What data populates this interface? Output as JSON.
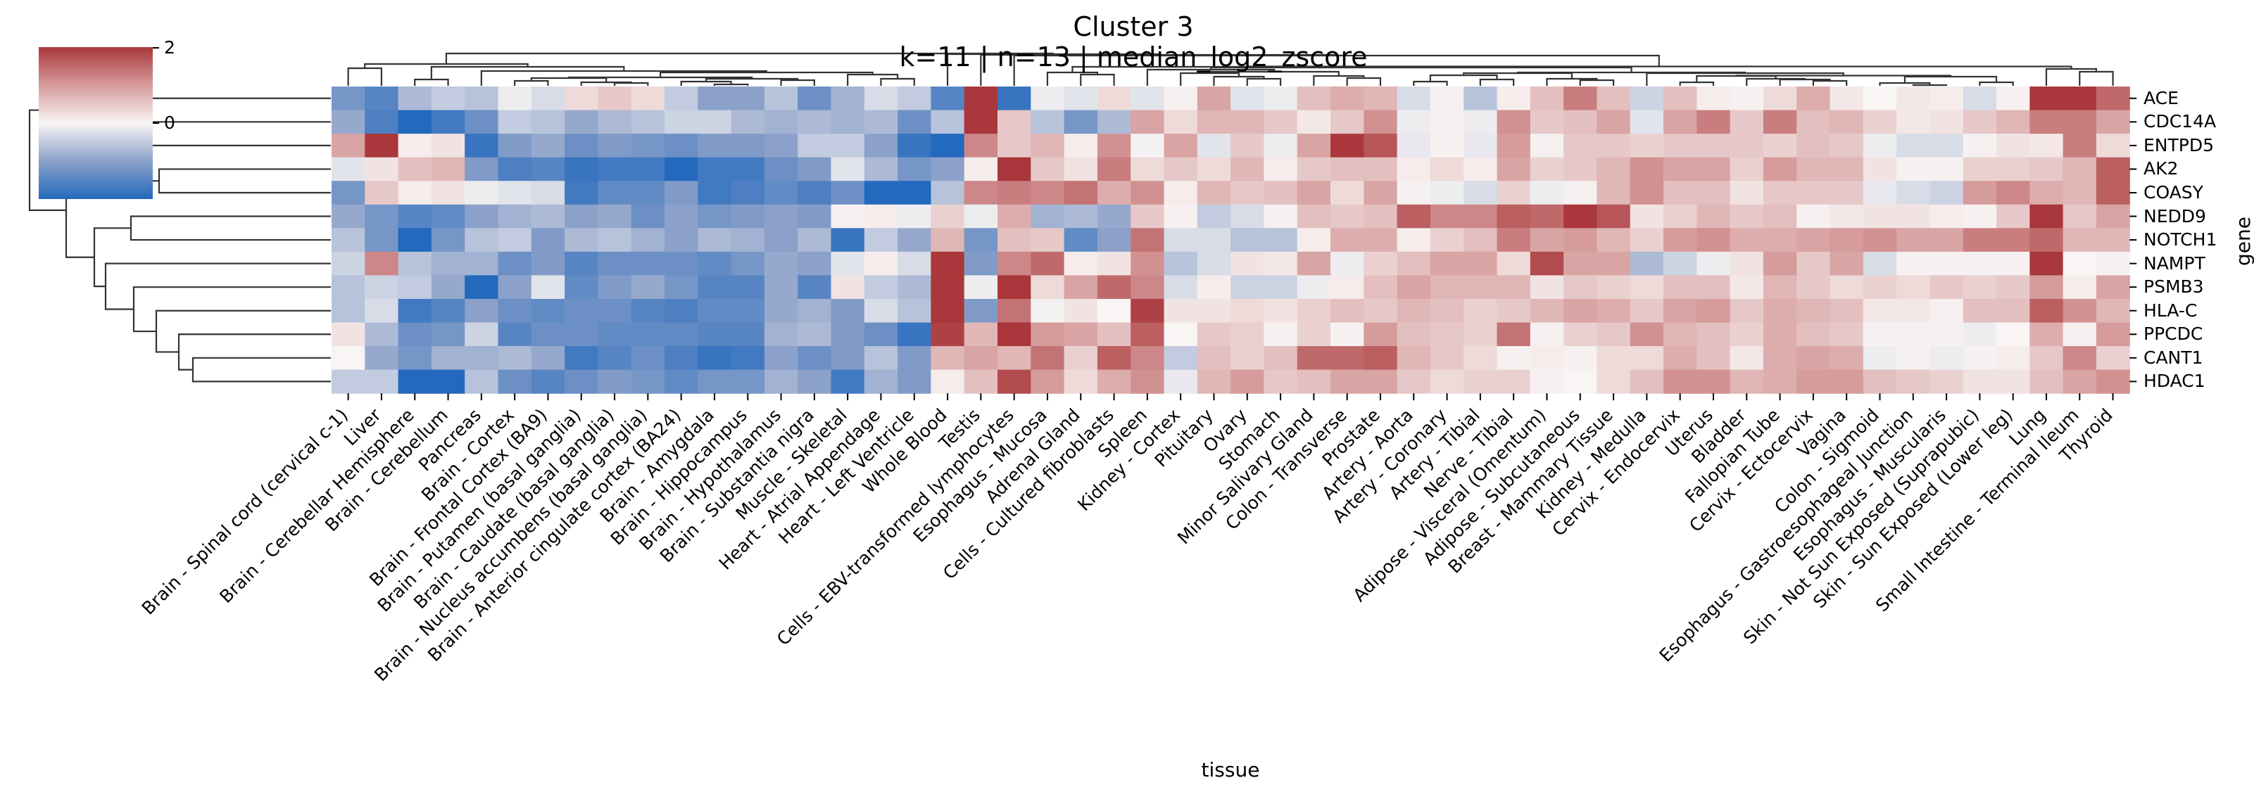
{
  "chart_data": {
    "type": "heatmap",
    "title": "Cluster 3",
    "subtitle": "k=11 | n=13 | median_log2_zscore",
    "xlabel": "tissue",
    "ylabel": "gene",
    "x_labels": [
      "Brain - Spinal cord (cervical c-1)",
      "Liver",
      "Brain - Cerebellar Hemisphere",
      "Brain - Cerebellum",
      "Pancreas",
      "Brain - Cortex",
      "Brain - Frontal Cortex (BA9)",
      "Brain - Putamen (basal ganglia)",
      "Brain - Caudate (basal ganglia)",
      "Brain - Nucleus accumbens (basal ganglia)",
      "Brain - Anterior cingulate cortex (BA24)",
      "Brain - Amygdala",
      "Brain - Hippocampus",
      "Brain - Hypothalamus",
      "Brain - Substantia nigra",
      "Muscle - Skeletal",
      "Heart - Atrial Appendage",
      "Heart - Left Ventricle",
      "Whole Blood",
      "Testis",
      "Cells - EBV-transformed lymphocytes",
      "Esophagus - Mucosa",
      "Adrenal Gland",
      "Cells - Cultured fibroblasts",
      "Spleen",
      "Kidney - Cortex",
      "Pituitary",
      "Ovary",
      "Stomach",
      "Minor Salivary Gland",
      "Colon - Transverse",
      "Prostate",
      "Artery - Aorta",
      "Artery - Coronary",
      "Artery - Tibial",
      "Nerve - Tibial",
      "Adipose - Visceral (Omentum)",
      "Adipose - Subcutaneous",
      "Breast - Mammary Tissue",
      "Kidney - Medulla",
      "Cervix - Endocervix",
      "Uterus",
      "Bladder",
      "Fallopian Tube",
      "Cervix - Ectocervix",
      "Vagina",
      "Colon - Sigmoid",
      "Esophagus - Gastroesophageal Junction",
      "Esophagus - Muscularis",
      "Skin - Not Sun Exposed (Suprapubic)",
      "Skin - Sun Exposed (Lower leg)",
      "Lung",
      "Small Intestine - Terminal Ileum",
      "Thyroid"
    ],
    "y_labels": [
      "ACE",
      "CDC14A",
      "ENTPD5",
      "AK2",
      "COASY",
      "NEDD9",
      "NOTCH1",
      "NAMPT",
      "PSMB3",
      "HLA-C",
      "PPCDC",
      "CANT1",
      "HDAC1"
    ],
    "value_layout": "values_by_tissue[tissue_index][gene_index]",
    "values_by_tissue": [
      [
        -1.2,
        -0.9,
        0.9,
        -0.2,
        -1.2,
        -0.9,
        -0.6,
        -0.4,
        -0.6,
        -0.6,
        0.2,
        0.0,
        -0.5
      ],
      [
        -1.5,
        -1.6,
        2.0,
        0.2,
        0.5,
        -1.2,
        -1.2,
        1.2,
        -0.4,
        -0.3,
        -0.7,
        -0.9,
        -0.5
      ],
      [
        -0.7,
        -2.0,
        0.1,
        0.6,
        0.1,
        -1.5,
        -2.1,
        -0.6,
        -0.5,
        -1.7,
        -1.3,
        -1.2,
        -2.1
      ],
      [
        -0.5,
        -1.7,
        0.2,
        0.7,
        0.2,
        -1.4,
        -1.2,
        -0.8,
        -0.9,
        -1.5,
        -1.2,
        -0.8,
        -2.1
      ],
      [
        -0.6,
        -1.3,
        -1.8,
        -1.1,
        -0.1,
        -1.0,
        -0.6,
        -0.8,
        -2.1,
        -1.0,
        -0.4,
        -0.8,
        -0.6
      ],
      [
        -0.1,
        -0.5,
        -1.1,
        -1.6,
        -0.2,
        -0.8,
        -0.5,
        -1.3,
        -1.0,
        -1.3,
        -1.5,
        -0.7,
        -1.3
      ],
      [
        -0.3,
        -0.6,
        -0.9,
        -1.5,
        -0.3,
        -0.7,
        -1.1,
        -1.1,
        -0.2,
        -1.4,
        -1.3,
        -0.9,
        -1.5
      ],
      [
        0.3,
        -0.9,
        -1.3,
        -1.8,
        -1.7,
        -1.0,
        -0.7,
        -1.5,
        -1.4,
        -1.3,
        -1.3,
        -1.7,
        -1.3
      ],
      [
        0.5,
        -0.7,
        -1.1,
        -1.7,
        -1.4,
        -0.9,
        -0.6,
        -1.3,
        -1.1,
        -1.3,
        -1.4,
        -1.5,
        -1.1
      ],
      [
        0.3,
        -0.6,
        -1.2,
        -1.7,
        -1.4,
        -1.3,
        -0.8,
        -1.3,
        -0.9,
        -1.5,
        -1.4,
        -1.3,
        -1.2
      ],
      [
        -0.5,
        -0.4,
        -1.3,
        -2.0,
        -1.1,
        -1.0,
        -1.0,
        -1.3,
        -1.2,
        -1.6,
        -1.4,
        -1.6,
        -1.4
      ],
      [
        -1.0,
        -0.4,
        -1.1,
        -1.7,
        -1.7,
        -1.2,
        -0.7,
        -1.4,
        -1.5,
        -1.4,
        -1.5,
        -1.8,
        -1.2
      ],
      [
        -1.0,
        -0.7,
        -1.1,
        -1.7,
        -1.6,
        -1.1,
        -0.8,
        -1.2,
        -1.5,
        -1.4,
        -1.5,
        -1.7,
        -1.2
      ],
      [
        -0.6,
        -0.8,
        -1.0,
        -1.3,
        -1.4,
        -1.0,
        -1.0,
        -0.9,
        -0.9,
        -0.9,
        -0.8,
        -1.0,
        -0.8
      ],
      [
        -1.3,
        -0.7,
        -0.5,
        -1.1,
        -1.6,
        -1.1,
        -0.7,
        -1.0,
        -1.5,
        -0.8,
        -0.7,
        -1.3,
        -1.0
      ],
      [
        -0.8,
        -0.8,
        -0.5,
        -0.2,
        -1.3,
        0.05,
        -1.8,
        -0.2,
        0.2,
        -1.1,
        -1.1,
        -1.1,
        -1.7
      ],
      [
        -0.3,
        -0.7,
        -1.0,
        -0.7,
        -2.1,
        0.1,
        -0.5,
        0.1,
        -0.5,
        -0.3,
        -1.3,
        -0.6,
        -0.8
      ],
      [
        -0.5,
        -1.3,
        -1.8,
        -1.2,
        -2.1,
        -0.1,
        -0.9,
        -0.3,
        -0.7,
        -0.6,
        -1.8,
        -1.1,
        -1.1
      ],
      [
        -1.5,
        -0.6,
        -2.1,
        -1.0,
        -0.6,
        0.4,
        0.7,
        2.0,
        2.0,
        2.0,
        1.9,
        0.7,
        0.1
      ],
      [
        2.0,
        2.0,
        1.2,
        0.1,
        1.2,
        -0.1,
        -1.2,
        -1.1,
        -0.1,
        -1.1,
        0.7,
        0.9,
        0.6
      ],
      [
        -1.8,
        0.5,
        0.5,
        2.0,
        1.3,
        0.8,
        0.6,
        1.2,
        2.0,
        1.4,
        2.0,
        0.7,
        1.8
      ],
      [
        -0.1,
        -0.6,
        0.7,
        0.5,
        1.2,
        -0.8,
        0.5,
        1.5,
        0.3,
        -0.05,
        1.0,
        1.4,
        1.0
      ],
      [
        -0.2,
        -1.2,
        0.1,
        0.2,
        1.4,
        -0.7,
        -1.4,
        0.1,
        0.9,
        0.2,
        0.9,
        0.4,
        0.3
      ],
      [
        0.3,
        -0.7,
        1.1,
        1.3,
        0.8,
        -0.9,
        -1.0,
        0.2,
        1.5,
        0.0,
        0.6,
        1.6,
        0.8
      ],
      [
        -0.2,
        0.9,
        -0.05,
        0.3,
        1.1,
        0.5,
        1.4,
        1.1,
        1.2,
        1.9,
        1.6,
        1.2,
        1.1
      ],
      [
        0.05,
        0.3,
        0.9,
        0.5,
        0.1,
        0.05,
        -0.3,
        -0.6,
        -0.3,
        0.2,
        0.0,
        -0.5,
        -0.15
      ],
      [
        0.9,
        0.7,
        -0.2,
        0.3,
        0.7,
        -0.5,
        -0.3,
        -0.3,
        0.1,
        0.2,
        0.5,
        0.6,
        0.7
      ],
      [
        -0.2,
        0.7,
        0.5,
        0.7,
        0.5,
        -0.3,
        -0.6,
        0.2,
        -0.4,
        0.3,
        0.4,
        0.4,
        1.0
      ],
      [
        -0.1,
        0.5,
        -0.1,
        0.1,
        0.6,
        0.05,
        -0.6,
        0.15,
        -0.4,
        0.2,
        0.05,
        0.6,
        0.5
      ],
      [
        0.6,
        0.15,
        0.9,
        0.5,
        0.9,
        0.6,
        0.1,
        0.9,
        -0.1,
        0.4,
        0.4,
        1.5,
        0.6
      ],
      [
        0.8,
        0.5,
        2.0,
        0.6,
        0.3,
        0.5,
        0.8,
        -0.1,
        0.1,
        0.6,
        0.05,
        1.5,
        0.9
      ],
      [
        0.7,
        1.1,
        1.7,
        0.6,
        0.9,
        0.6,
        0.8,
        0.4,
        0.6,
        0.5,
        1.0,
        1.6,
        0.9
      ],
      [
        -0.3,
        -0.1,
        -0.15,
        0.1,
        0.05,
        1.6,
        0.1,
        0.6,
        0.9,
        0.7,
        0.6,
        0.7,
        0.5
      ],
      [
        0.05,
        0.05,
        0.05,
        0.3,
        -0.1,
        1.2,
        0.4,
        0.9,
        0.7,
        0.6,
        0.5,
        0.5,
        0.3
      ],
      [
        -0.6,
        -0.1,
        -0.15,
        0.1,
        -0.3,
        1.2,
        0.6,
        0.9,
        0.7,
        0.4,
        0.4,
        0.3,
        0.4
      ],
      [
        0.1,
        1.1,
        1.0,
        0.9,
        0.4,
        1.6,
        1.3,
        0.3,
        0.7,
        0.5,
        1.4,
        0.05,
        0.4
      ],
      [
        0.6,
        0.5,
        0.05,
        0.4,
        -0.1,
        1.5,
        0.9,
        1.8,
        0.2,
        0.7,
        0.05,
        0.1,
        0.05
      ],
      [
        1.3,
        0.6,
        0.5,
        0.5,
        0.05,
        2.0,
        1.0,
        0.9,
        0.5,
        0.9,
        0.4,
        0.05,
        0.0
      ],
      [
        0.6,
        0.9,
        0.5,
        0.7,
        0.7,
        1.7,
        0.7,
        0.9,
        0.4,
        0.8,
        0.5,
        0.3,
        0.3
      ],
      [
        -0.4,
        -0.2,
        0.4,
        1.1,
        1.1,
        0.2,
        0.4,
        -0.7,
        0.3,
        0.5,
        1.1,
        0.3,
        0.6
      ],
      [
        0.6,
        0.9,
        0.5,
        0.9,
        0.6,
        0.4,
        1.0,
        -0.4,
        0.6,
        0.9,
        0.7,
        0.8,
        1.1
      ],
      [
        0.1,
        1.3,
        0.5,
        0.9,
        0.6,
        0.7,
        1.1,
        -0.1,
        0.6,
        1.0,
        0.6,
        0.6,
        1.1
      ],
      [
        0.05,
        0.5,
        0.5,
        0.4,
        0.2,
        0.5,
        0.8,
        0.2,
        0.15,
        0.5,
        0.4,
        0.15,
        0.7
      ],
      [
        0.3,
        1.3,
        0.4,
        1.0,
        0.5,
        0.6,
        0.8,
        1.0,
        0.7,
        0.8,
        0.8,
        0.8,
        0.8
      ],
      [
        0.8,
        0.6,
        0.6,
        0.7,
        0.5,
        0.05,
        0.9,
        0.5,
        0.5,
        0.7,
        0.6,
        0.9,
        1.0
      ],
      [
        0.15,
        0.7,
        0.5,
        0.7,
        0.5,
        0.15,
        1.0,
        0.9,
        0.3,
        0.6,
        0.5,
        0.8,
        1.0
      ],
      [
        0.0,
        0.4,
        -0.1,
        0.2,
        -0.15,
        0.2,
        1.1,
        -0.3,
        0.4,
        0.15,
        0.05,
        -0.1,
        0.6
      ],
      [
        0.15,
        0.15,
        -0.3,
        0.05,
        -0.3,
        0.2,
        0.9,
        0.05,
        0.3,
        0.15,
        0.05,
        0.05,
        0.5
      ],
      [
        0.1,
        0.2,
        -0.3,
        0.05,
        -0.4,
        0.1,
        0.9,
        0.05,
        0.5,
        0.05,
        0.05,
        -0.1,
        0.4
      ],
      [
        -0.3,
        0.5,
        0.05,
        0.4,
        1.0,
        0.05,
        1.3,
        0.05,
        0.4,
        0.6,
        -0.1,
        0.05,
        0.2
      ],
      [
        0.05,
        0.7,
        0.2,
        0.4,
        1.2,
        0.5,
        1.3,
        0.05,
        0.5,
        0.6,
        0.0,
        0.1,
        0.2
      ],
      [
        2.0,
        1.3,
        0.15,
        0.5,
        0.8,
        2.0,
        1.5,
        2.0,
        1.0,
        1.6,
        0.8,
        0.5,
        0.6
      ],
      [
        2.0,
        1.3,
        1.3,
        0.7,
        0.7,
        0.5,
        0.7,
        0.0,
        0.1,
        1.1,
        0.05,
        1.2,
        0.9
      ],
      [
        1.5,
        0.9,
        0.3,
        1.6,
        1.6,
        0.9,
        0.7,
        0.05,
        0.9,
        0.7,
        1.0,
        0.4,
        1.1
      ]
    ],
    "color_range": [
      -2,
      2
    ],
    "colormap_stops": [
      {
        "value": -2,
        "color": "#2369bd"
      },
      {
        "value": -1,
        "color": "#8ba1c9"
      },
      {
        "value": 0,
        "color": "#f8f5f4"
      },
      {
        "value": 1,
        "color": "#d69b9b"
      },
      {
        "value": 2,
        "color": "#a9373b"
      }
    ],
    "colorbar_ticks": [
      {
        "value": 2,
        "label": "2"
      },
      {
        "value": 0,
        "label": "0"
      }
    ],
    "row_dendrogram": [
      [
        0,
        1,
        7.75
      ],
      [
        [
          2,
          [
            3,
            4,
            6.1
          ],
          6.8
        ],
        [
          [
            5,
            6,
            7.1
          ],
          [
            7,
            [
              8,
              [
                9,
                [
                  10,
                  [
                    11,
                    12,
                    4.9
                  ],
                  5.4
                ],
                6.2
              ],
              7.0
            ],
            8.0
          ],
          8.4
        ],
        9.4
      ],
      10.7
    ],
    "col_dendrogram": [
      [
        [
          0,
          1,
          2.5
        ],
        [
          [
            2,
            3,
            0.9
          ],
          [
            4,
            [
              [
                [
                  [
                    5,
                    6,
                    0.7
                  ],
                  [
                    7,
                    [
                      8,
                      9,
                      0.4
                    ],
                    0.5
                  ],
                  1.1
                ],
                [
                  [
                    10,
                    [
                      11,
                      12,
                      0.2
                    ],
                    0.6
                  ],
                  [
                    13,
                    14,
                    0.8
                  ],
                  1.0
                ],
                1.2
              ],
              [
                15,
                [
                  16,
                  17,
                  1.0
                ],
                1.6
              ],
              1.9
            ],
            2.1
          ],
          2.7
        ],
        3.1
      ],
      [
        18,
        [
          19,
          [
            20,
            [
              [
                [
                  21,
                  [
                    22,
                    23,
                    1.6
                  ],
                  1.9
                ],
                [
                  [
                    24,
                    [
                      [
                        25,
                        [
                          26,
                          [
                            27,
                            28,
                            1.0
                          ],
                          1.3
                        ],
                        1.8
                      ],
                      [
                        29,
                        [
                          30,
                          31,
                          1.1
                        ],
                        1.4
                      ],
                      2.0
                    ],
                    2.3
                  ],
                  [
                    [
                      [
                        [
                          32,
                          33,
                          0.6
                        ],
                        [
                          34,
                          35,
                          0.9
                        ],
                        1.5
                      ],
                      [
                        36,
                        [
                          37,
                          38,
                          0.8
                        ],
                        1.0
                      ],
                      1.8
                    ],
                    [
                      39,
                      [
                        [
                          [
                            40,
                            41,
                            0.5
                          ],
                          [
                            42,
                            [
                              43,
                              [
                                44,
                                45,
                                0.7
                              ],
                              0.9
                            ],
                            1.0
                          ],
                          1.4
                        ],
                        [
                          [
                            46,
                            [
                              47,
                              48,
                              0.1
                            ],
                            0.4
                          ],
                          [
                            49,
                            50,
                            0.5
                          ],
                          1.3
                        ],
                        1.45
                      ],
                      1.8
                    ],
                    1.9
                  ],
                  2.6
                ],
                2.7
              ],
              [
                51,
                [
                  52,
                  53,
                  2.0
                ],
                2.4
              ],
              2.75
            ],
            4.3
          ],
          4.4
        ],
        4.5
      ],
      4.6
    ]
  }
}
